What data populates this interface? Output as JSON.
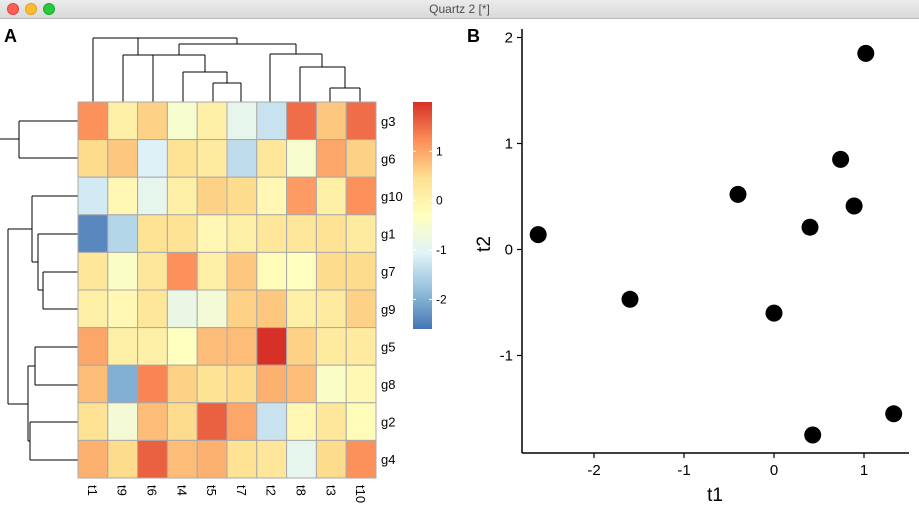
{
  "window": {
    "title": "Quartz 2 [*]",
    "controls": [
      "close",
      "minimize",
      "zoom"
    ]
  },
  "panel_labels": {
    "a": "A",
    "b": "B"
  },
  "heatmap": {
    "columns": [
      "t1",
      "t9",
      "t6",
      "t4",
      "t5",
      "t7",
      "t2",
      "t8",
      "t3",
      "t10"
    ],
    "rows": [
      "g3",
      "g6",
      "g10",
      "g1",
      "g7",
      "g9",
      "g5",
      "g8",
      "g2",
      "g4"
    ],
    "values": [
      [
        1.2,
        0.1,
        0.6,
        -0.5,
        0.1,
        -0.9,
        -1.3,
        1.5,
        0.7,
        1.5
      ],
      [
        0.5,
        0.7,
        -1.1,
        0.4,
        0.2,
        -1.4,
        0.3,
        -0.5,
        1.0,
        0.6
      ],
      [
        -1.2,
        -0.1,
        -0.9,
        0.1,
        0.6,
        0.5,
        -0.1,
        1.1,
        0.1,
        1.2
      ],
      [
        -2.4,
        -1.5,
        0.4,
        0.4,
        -0.1,
        0.1,
        0.3,
        0.3,
        0.4,
        0.2
      ],
      [
        0.3,
        -0.4,
        0.3,
        1.2,
        0.1,
        0.7,
        -0.2,
        -0.3,
        0.5,
        0.5
      ],
      [
        0.1,
        -0.1,
        0.3,
        -0.8,
        -0.6,
        0.6,
        0.7,
        0.1,
        0.2,
        0.6
      ],
      [
        1.0,
        0.1,
        0.1,
        -0.3,
        0.8,
        0.8,
        2.0,
        0.6,
        0.2,
        0.2
      ],
      [
        0.8,
        -2.0,
        1.3,
        0.6,
        0.4,
        0.5,
        0.9,
        0.8,
        -0.4,
        -0.1
      ],
      [
        0.4,
        -0.6,
        0.8,
        0.5,
        1.6,
        1.0,
        -1.3,
        -0.1,
        0.3,
        -0.2
      ],
      [
        0.9,
        0.5,
        1.6,
        0.8,
        0.9,
        0.4,
        0.3,
        -0.9,
        0.5,
        1.2
      ]
    ],
    "legend": {
      "ticks": [
        1,
        0,
        -1,
        -2
      ],
      "tick_labels": [
        "1",
        "0",
        "-1",
        "-2"
      ],
      "range": [
        -2.6,
        2.0
      ],
      "colors": [
        "#4575b4",
        "#91bfdb",
        "#e0f3f8",
        "#ffffbf",
        "#fee090",
        "#fc8d59",
        "#d73027"
      ]
    },
    "grid_color": "#a9a9a9"
  },
  "scatter": {
    "chart_data": {
      "type": "scatter",
      "xlabel": "t1",
      "ylabel": "t2",
      "xlim": [
        -2.8,
        1.5
      ],
      "ylim": [
        -1.92,
        2.08
      ],
      "x_ticks": [
        -2,
        -1,
        0,
        1
      ],
      "x_tick_labels": [
        "-2",
        "-1",
        "0",
        "1"
      ],
      "y_ticks": [
        2,
        1,
        0,
        -1
      ],
      "y_tick_labels": [
        "2",
        "1",
        "0",
        "-1"
      ],
      "points": [
        {
          "x": -2.62,
          "y": 0.14
        },
        {
          "x": -1.6,
          "y": -0.47
        },
        {
          "x": -0.4,
          "y": 0.52
        },
        {
          "x": 0.0,
          "y": -0.6
        },
        {
          "x": 0.4,
          "y": 0.21
        },
        {
          "x": 0.43,
          "y": -1.75
        },
        {
          "x": 0.74,
          "y": 0.85
        },
        {
          "x": 0.89,
          "y": 0.41
        },
        {
          "x": 1.02,
          "y": 1.85
        },
        {
          "x": 1.33,
          "y": -1.55
        }
      ],
      "grid": false,
      "point_color": "#000000"
    }
  }
}
